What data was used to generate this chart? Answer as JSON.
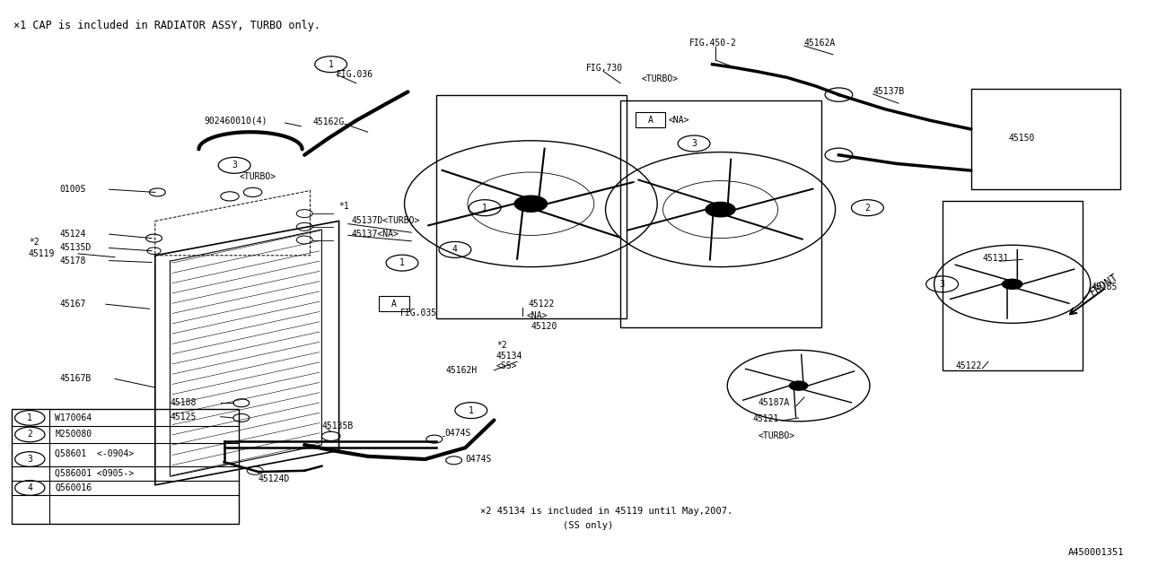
{
  "bg_color": "#ffffff",
  "line_color": "#000000",
  "title_top": "×1 CAP is included in RADIATOR ASSY, TURBO only.",
  "fig_id": "A450001351",
  "note1": "×2 45134 is included in 45119 until May,2007.",
  "note2": "(SS only)",
  "font_size_main": 8,
  "font_size_small": 7,
  "font_size_title": 8.5,
  "legend": [
    {
      "num": "1",
      "text": "W170064"
    },
    {
      "num": "2",
      "text": "M250080"
    },
    {
      "num": "3",
      "text": "Q58601  <-0904>",
      "text2": "Q586001 <0905->"
    },
    {
      "num": "4",
      "text": "Q560016"
    }
  ]
}
